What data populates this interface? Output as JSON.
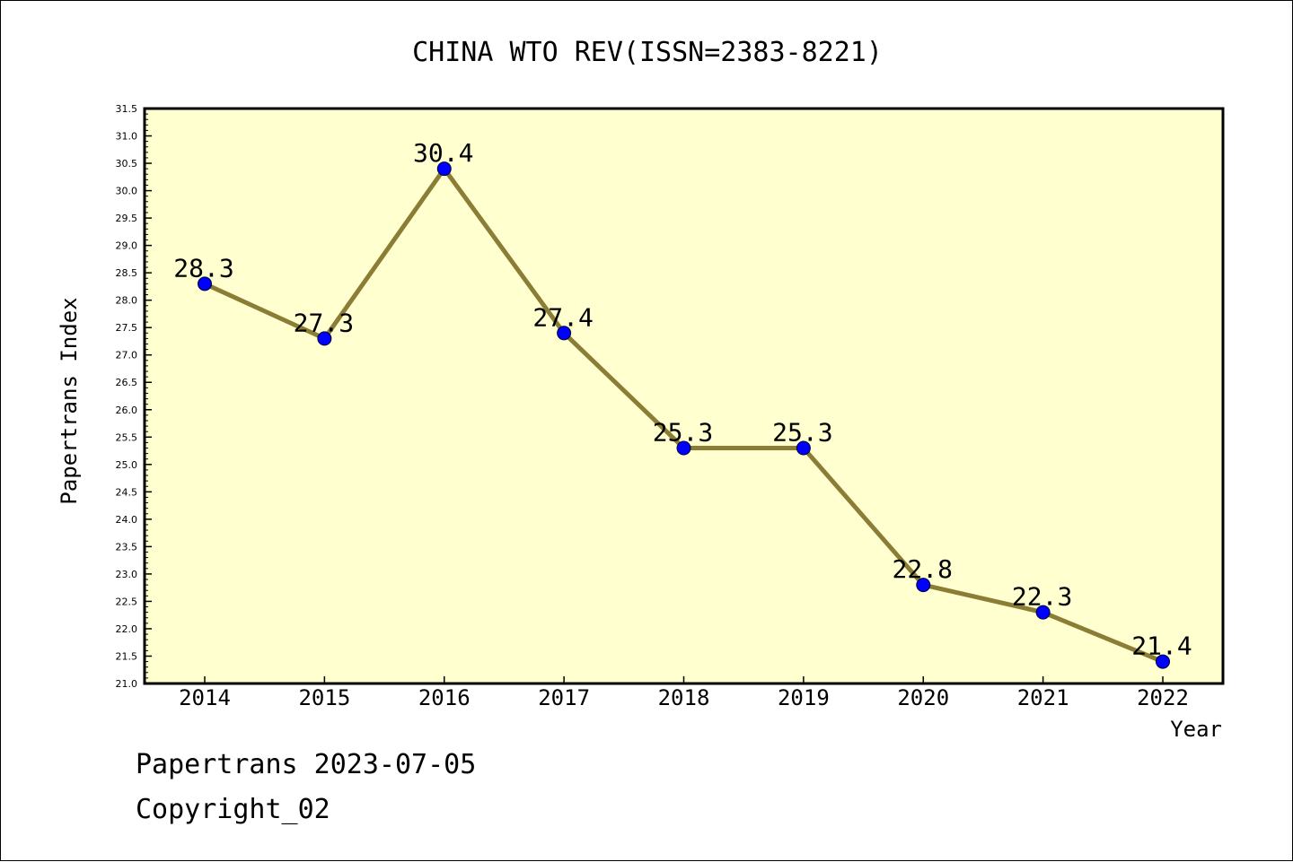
{
  "chart_data": {
    "type": "line",
    "title": "CHINA WTO REV(ISSN=2383-8221)",
    "xlabel": "Year",
    "ylabel": "Papertrans Index",
    "categories": [
      "2014",
      "2015",
      "2016",
      "2017",
      "2018",
      "2019",
      "2020",
      "2021",
      "2022"
    ],
    "series": [
      {
        "values": [
          28.3,
          27.3,
          30.4,
          27.4,
          25.3,
          25.3,
          22.8,
          22.3,
          21.4
        ],
        "data_labels": [
          "28.3",
          "27.3",
          "30.4",
          "27.4",
          "25.3",
          "25.3",
          "22.8",
          "22.3",
          "21.4"
        ]
      }
    ],
    "ylim": [
      21.0,
      31.5
    ],
    "ytick_step": 0.5,
    "ytick_labels": [
      "21.0",
      "21.5",
      "22.0",
      "22.5",
      "23.0",
      "23.5",
      "24.0",
      "24.5",
      "25.0",
      "25.5",
      "26.0",
      "26.5",
      "27.0",
      "27.5",
      "28.0",
      "28.5",
      "29.0",
      "29.5",
      "30.0",
      "30.5",
      "31.0",
      "31.5"
    ],
    "grid": false,
    "legend": "none",
    "colors": {
      "plot_background": "#ffffd0",
      "line": "#8b7d35",
      "marker": "#0000ff"
    }
  },
  "footer": {
    "source_line": "Papertrans 2023-07-05",
    "copyright_line": "Copyright_02"
  }
}
